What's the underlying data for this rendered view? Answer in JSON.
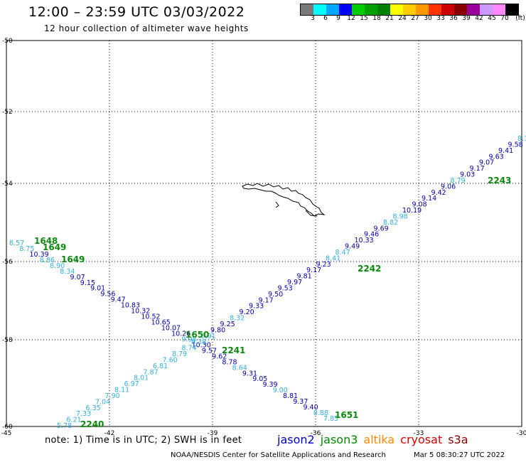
{
  "header": {
    "title": "12:00 – 23:59 UTC 03/03/2022",
    "subtitle": "12 hour collection of altimeter wave heights"
  },
  "legend": {
    "unit": "(ft)",
    "colors": [
      "#7a7a7a",
      "#00ffff",
      "#00a8ff",
      "#0000ff",
      "#00cc00",
      "#00a000",
      "#008000",
      "#ffff00",
      "#ffcc00",
      "#ff9900",
      "#ff3300",
      "#cc0000",
      "#880000",
      "#990099",
      "#cc99ff",
      "#ff88ff",
      "#000000"
    ],
    "labels": [
      "3",
      "6",
      "9",
      "12",
      "15",
      "18",
      "21",
      "24",
      "27",
      "30",
      "33",
      "36",
      "39",
      "42",
      "45",
      "70"
    ]
  },
  "axes": {
    "y_labels": [
      "-50",
      "-52",
      "-54",
      "-56",
      "-58",
      "-60"
    ],
    "x_labels": [
      "-45",
      "-42",
      "-39",
      "-36",
      "-33",
      "-30"
    ]
  },
  "track_colors": {
    "light": "#33b0dd",
    "dark": "#0000aa",
    "time": "#0b8a0b"
  },
  "tracks": {
    "descending": [
      {
        "v": "8.57",
        "c": "light"
      },
      {
        "v": "8.75",
        "c": "light"
      },
      {
        "v": "10.39",
        "c": "dark"
      },
      {
        "v": "8.86",
        "c": "light"
      },
      {
        "v": "8.90",
        "c": "light"
      },
      {
        "v": "8.34",
        "c": "light"
      },
      {
        "v": "9.07",
        "c": "dark"
      },
      {
        "v": "9.15",
        "c": "dark"
      },
      {
        "v": "9.01",
        "c": "dark"
      },
      {
        "v": "9.56",
        "c": "dark"
      },
      {
        "v": "9.47",
        "c": "dark"
      },
      {
        "v": "10.83",
        "c": "dark"
      },
      {
        "v": "10.32",
        "c": "dark"
      },
      {
        "v": "10.52",
        "c": "dark"
      },
      {
        "v": "10.65",
        "c": "dark"
      },
      {
        "v": "10.07",
        "c": "dark"
      },
      {
        "v": "10.26",
        "c": "dark"
      },
      {
        "v": "9.98",
        "c": "light"
      },
      {
        "v": "10.30",
        "c": "dark"
      },
      {
        "v": "9.57",
        "c": "dark"
      },
      {
        "v": "9.62",
        "c": "dark"
      },
      {
        "v": "8.78",
        "c": "dark"
      },
      {
        "v": "8.64",
        "c": "light"
      },
      {
        "v": "9.31",
        "c": "dark"
      },
      {
        "v": "9.05",
        "c": "dark"
      },
      {
        "v": "9.39",
        "c": "dark"
      },
      {
        "v": "9.00",
        "c": "light"
      },
      {
        "v": "8.81",
        "c": "dark"
      },
      {
        "v": "9.37",
        "c": "dark"
      },
      {
        "v": "9.40",
        "c": "dark"
      },
      {
        "v": "8.88",
        "c": "light"
      },
      {
        "v": "7.85",
        "c": "light"
      }
    ],
    "ascending": [
      {
        "v": "5.78",
        "c": "light"
      },
      {
        "v": "6.21",
        "c": "light"
      },
      {
        "v": "7.33",
        "c": "light"
      },
      {
        "v": "6.35",
        "c": "light"
      },
      {
        "v": "7.04",
        "c": "light"
      },
      {
        "v": "7.90",
        "c": "light"
      },
      {
        "v": "8.11",
        "c": "light"
      },
      {
        "v": "6.97",
        "c": "light"
      },
      {
        "v": "8.01",
        "c": "light"
      },
      {
        "v": "7.87",
        "c": "light"
      },
      {
        "v": "6.81",
        "c": "light"
      },
      {
        "v": "7.60",
        "c": "light"
      },
      {
        "v": "8.79",
        "c": "light"
      },
      {
        "v": "8.74",
        "c": "light"
      },
      {
        "v": "8.38",
        "c": "light"
      },
      {
        "v": "8.91",
        "c": "light"
      },
      {
        "v": "9.80",
        "c": "dark"
      },
      {
        "v": "9.25",
        "c": "dark"
      },
      {
        "v": "8.32",
        "c": "light"
      },
      {
        "v": "9.20",
        "c": "dark"
      },
      {
        "v": "9.33",
        "c": "dark"
      },
      {
        "v": "9.17",
        "c": "dark"
      },
      {
        "v": "9.50",
        "c": "dark"
      },
      {
        "v": "9.53",
        "c": "dark"
      },
      {
        "v": "9.97",
        "c": "dark"
      },
      {
        "v": "9.81",
        "c": "dark"
      },
      {
        "v": "9.17",
        "c": "dark"
      },
      {
        "v": "9.23",
        "c": "dark"
      },
      {
        "v": "8.41",
        "c": "light"
      },
      {
        "v": "8.47",
        "c": "light"
      },
      {
        "v": "9.49",
        "c": "dark"
      },
      {
        "v": "10.33",
        "c": "dark"
      },
      {
        "v": "9.46",
        "c": "dark"
      },
      {
        "v": "9.69",
        "c": "dark"
      },
      {
        "v": "8.82",
        "c": "light"
      },
      {
        "v": "8.98",
        "c": "light"
      },
      {
        "v": "10.19",
        "c": "dark"
      },
      {
        "v": "9.08",
        "c": "dark"
      },
      {
        "v": "9.14",
        "c": "dark"
      },
      {
        "v": "9.42",
        "c": "dark"
      },
      {
        "v": "9.06",
        "c": "dark"
      },
      {
        "v": "8.79",
        "c": "light"
      },
      {
        "v": "9.03",
        "c": "dark"
      },
      {
        "v": "9.17",
        "c": "dark"
      },
      {
        "v": "9.07",
        "c": "dark"
      },
      {
        "v": "9.63",
        "c": "dark"
      },
      {
        "v": "9.41",
        "c": "dark"
      },
      {
        "v": "9.58",
        "c": "dark"
      },
      {
        "v": "8.1",
        "c": "light"
      }
    ]
  },
  "times": [
    "1648",
    "1649",
    "1649",
    "1650",
    "1651",
    "2240",
    "2241",
    "2242",
    "2243"
  ],
  "note": "note: 1) Time is in UTC; 2) SWH is in feet",
  "satellites": [
    {
      "name": "jason2",
      "color": "#0000cc"
    },
    {
      "name": "jason3",
      "color": "#008800"
    },
    {
      "name": "altika",
      "color": "#ff8800"
    },
    {
      "name": "cryosat",
      "color": "#dd0000"
    },
    {
      "name": "s3a",
      "color": "#880000"
    }
  ],
  "footer": {
    "source": "NOAA/NESDIS Center for Satellite Applications and Research",
    "timestamp": "Mar  5 08:30:27 UTC 2022"
  }
}
